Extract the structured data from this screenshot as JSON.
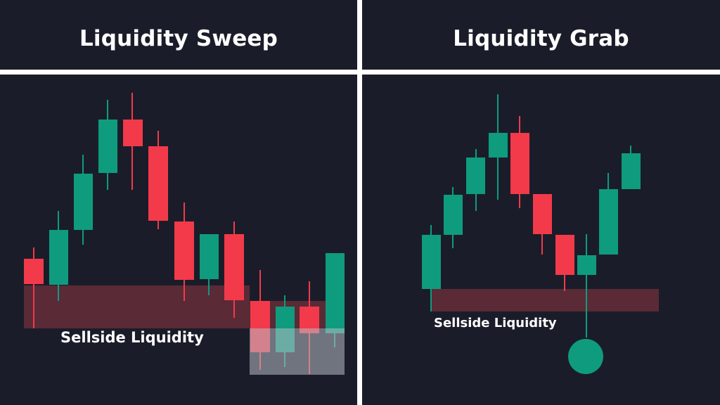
{
  "panels": {
    "left": {
      "title": "Liquidity Sweep",
      "zone_label": "Sellside Liquidity"
    },
    "right": {
      "title": "Liquidity Grab",
      "zone_label": "Sellside Liquidity"
    }
  },
  "colors": {
    "background": "#1a1d29",
    "divider": "#ffffff",
    "bull": "#0f9b7e",
    "bear": "#f23a4a",
    "zone": "#5a2a36",
    "sweep_box": "#8f939c"
  }
}
